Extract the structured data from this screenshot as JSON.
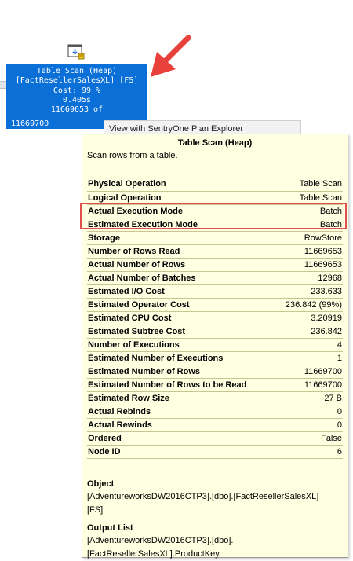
{
  "node": {
    "lines": [
      "Table Scan (Heap)",
      "[FactResellerSalesXL] [FS]",
      "Cost: 99 %",
      "0.405s",
      "11669653 of",
      "11669700"
    ],
    "bg_color": "#0a6fd6"
  },
  "context_menu": {
    "item": "View with SentryOne Plan Explorer"
  },
  "tooltip": {
    "title": "Table Scan (Heap)",
    "description": "Scan rows from a table.",
    "properties": [
      {
        "key": "Physical Operation",
        "value": "Table Scan"
      },
      {
        "key": "Logical Operation",
        "value": "Table Scan"
      },
      {
        "key": "Actual Execution Mode",
        "value": "Batch"
      },
      {
        "key": "Estimated Execution Mode",
        "value": "Batch"
      },
      {
        "key": "Storage",
        "value": "RowStore"
      },
      {
        "key": "Number of Rows Read",
        "value": "11669653"
      },
      {
        "key": "Actual Number of Rows",
        "value": "11669653"
      },
      {
        "key": "Actual Number of Batches",
        "value": "12968"
      },
      {
        "key": "Estimated I/O Cost",
        "value": "233.633"
      },
      {
        "key": "Estimated Operator Cost",
        "value": "236.842 (99%)"
      },
      {
        "key": "Estimated CPU Cost",
        "value": "3.20919"
      },
      {
        "key": "Estimated Subtree Cost",
        "value": "236.842"
      },
      {
        "key": "Number of Executions",
        "value": "4"
      },
      {
        "key": "Estimated Number of Executions",
        "value": "1"
      },
      {
        "key": "Estimated Number of Rows",
        "value": "11669700"
      },
      {
        "key": "Estimated Number of Rows to be Read",
        "value": "11669700"
      },
      {
        "key": "Estimated Row Size",
        "value": "27 B"
      },
      {
        "key": "Actual Rebinds",
        "value": "0"
      },
      {
        "key": "Actual Rewinds",
        "value": "0"
      },
      {
        "key": "Ordered",
        "value": "False"
      },
      {
        "key": "Node ID",
        "value": "6"
      }
    ],
    "object": {
      "label": "Object",
      "lines": [
        "[AdventureworksDW2016CTP3].[dbo].[FactResellerSalesXL]",
        "[FS]"
      ]
    },
    "output_list": {
      "label": "Output List",
      "lines": [
        "[AdventureworksDW2016CTP3].[dbo].",
        "[FactResellerSalesXL].ProductKey,"
      ]
    }
  },
  "colors": {
    "tooltip_bg": "#ffffe1",
    "highlight": "#e05050",
    "arrow": "#e8403a"
  }
}
